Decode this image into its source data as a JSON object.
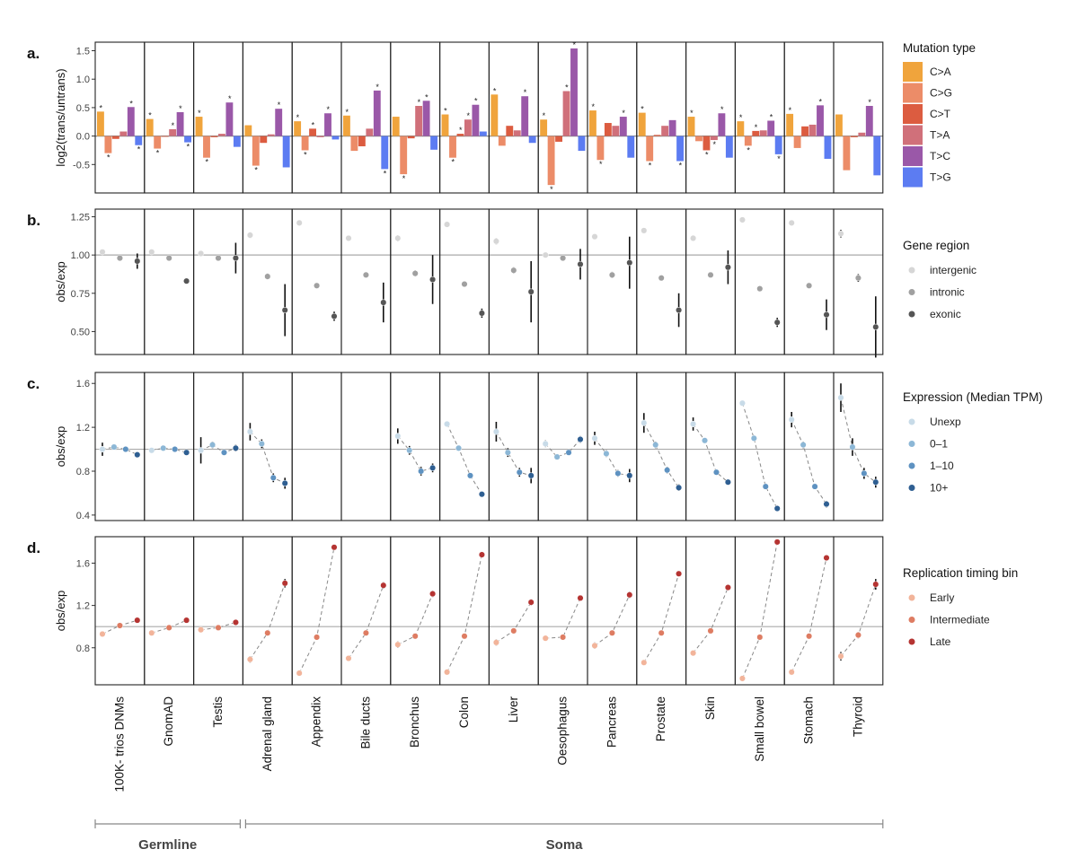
{
  "categories": [
    "100K- trios DNMs",
    "GnomAD",
    "Testis",
    "Adrenal gland",
    "Appendix",
    "Bile ducts",
    "Bronchus",
    "Colon",
    "Liver",
    "Oesophagus",
    "Pancreas",
    "Prostate",
    "Skin",
    "Small bowel",
    "Stomach",
    "Thyroid"
  ],
  "groups": [
    {
      "label": "Germline",
      "start": 0,
      "end": 2
    },
    {
      "label": "Soma",
      "start": 3,
      "end": 15
    }
  ],
  "chart_data": [
    {
      "panel_label": "a.",
      "type": "bar",
      "ylabel": "log2(trans/untrans)",
      "ylim": [
        -1.0,
        1.65
      ],
      "yticks": [
        -0.5,
        0.0,
        0.5,
        1.0,
        1.5
      ],
      "yticklabels": [
        "-0.5",
        "0.0",
        "0.5",
        "1.0",
        "1.5"
      ],
      "reference_line": 0,
      "legend_title": "Mutation type",
      "significance_marker": "*",
      "series": [
        {
          "name": "C>A",
          "color": "#f0a43c",
          "values": [
            0.43,
            0.3,
            0.34,
            0.19,
            0.26,
            0.36,
            0.34,
            0.38,
            0.73,
            0.29,
            0.45,
            0.41,
            0.34,
            0.26,
            0.39,
            0.38
          ],
          "sig": [
            true,
            true,
            true,
            false,
            true,
            true,
            false,
            true,
            true,
            true,
            true,
            true,
            true,
            true,
            true,
            false
          ]
        },
        {
          "name": "C>G",
          "color": "#ec8c68",
          "values": [
            -0.3,
            -0.22,
            -0.38,
            -0.52,
            -0.25,
            -0.26,
            -0.67,
            -0.38,
            -0.17,
            -0.86,
            -0.42,
            -0.44,
            -0.09,
            -0.17,
            -0.21,
            -0.6
          ],
          "sig": [
            true,
            true,
            true,
            true,
            true,
            false,
            true,
            true,
            false,
            true,
            true,
            true,
            false,
            true,
            false,
            false
          ]
        },
        {
          "name": "C>T",
          "color": "#dc5c40",
          "values": [
            -0.05,
            0.0,
            -0.02,
            -0.12,
            0.13,
            -0.18,
            -0.04,
            0.04,
            0.18,
            -0.1,
            0.23,
            0.02,
            -0.25,
            0.09,
            0.17,
            -0.02
          ],
          "sig": [
            false,
            false,
            false,
            false,
            true,
            false,
            false,
            true,
            false,
            false,
            false,
            false,
            true,
            true,
            false,
            false
          ]
        },
        {
          "name": "T>A",
          "color": "#d0707a",
          "values": [
            0.08,
            0.12,
            0.04,
            0.03,
            -0.02,
            0.13,
            0.53,
            0.29,
            0.1,
            0.79,
            0.18,
            0.18,
            -0.07,
            0.1,
            0.2,
            0.06
          ],
          "sig": [
            false,
            true,
            false,
            false,
            false,
            false,
            true,
            true,
            false,
            true,
            false,
            false,
            true,
            false,
            false,
            false
          ]
        },
        {
          "name": "T>C",
          "color": "#9a58a8",
          "values": [
            0.51,
            0.42,
            0.59,
            0.48,
            0.4,
            0.8,
            0.62,
            0.55,
            0.7,
            1.54,
            0.34,
            0.28,
            0.4,
            0.27,
            0.54,
            0.53
          ],
          "sig": [
            true,
            true,
            true,
            true,
            true,
            true,
            true,
            true,
            true,
            true,
            true,
            false,
            true,
            true,
            true,
            true
          ]
        },
        {
          "name": "T>G",
          "color": "#5c7cf2",
          "values": [
            -0.16,
            -0.11,
            -0.19,
            -0.55,
            -0.06,
            -0.58,
            -0.24,
            0.08,
            -0.12,
            -0.26,
            -0.38,
            -0.44,
            -0.38,
            -0.32,
            -0.4,
            -0.69
          ],
          "sig": [
            true,
            true,
            false,
            false,
            false,
            true,
            false,
            false,
            false,
            false,
            false,
            true,
            false,
            true,
            false,
            false
          ]
        }
      ]
    },
    {
      "panel_label": "b.",
      "type": "scatter",
      "ylabel": "obs/exp",
      "ylim": [
        0.35,
        1.3
      ],
      "yticks": [
        0.5,
        0.75,
        1.0,
        1.25
      ],
      "yticklabels": [
        "0.50",
        "0.75",
        "1.00",
        "1.25"
      ],
      "reference_line": 1.0,
      "legend_title": "Gene region",
      "connect_points": false,
      "series": [
        {
          "name": "intergenic",
          "color": "#d6d6d6",
          "values": [
            1.02,
            1.02,
            1.01,
            1.13,
            1.21,
            1.11,
            1.11,
            1.2,
            1.09,
            1.0,
            1.12,
            1.16,
            1.11,
            1.23,
            1.21,
            1.14
          ],
          "err": [
            0.01,
            0.01,
            0.01,
            0.02,
            0.01,
            0.015,
            0.02,
            0.01,
            0.02,
            0.01,
            0.015,
            0.015,
            0.015,
            0.01,
            0.015,
            0.025
          ]
        },
        {
          "name": "intronic",
          "color": "#a0a0a0",
          "values": [
            0.98,
            0.98,
            0.98,
            0.86,
            0.8,
            0.87,
            0.88,
            0.81,
            0.9,
            0.98,
            0.87,
            0.85,
            0.87,
            0.78,
            0.8,
            0.85
          ],
          "err": [
            0.01,
            0.01,
            0.01,
            0.02,
            0.01,
            0.015,
            0.02,
            0.01,
            0.02,
            0.015,
            0.02,
            0.015,
            0.015,
            0.01,
            0.015,
            0.025
          ]
        },
        {
          "name": "exonic",
          "color": "#555555",
          "values": [
            0.96,
            0.83,
            0.98,
            0.64,
            0.6,
            0.69,
            0.84,
            0.62,
            0.76,
            0.94,
            0.95,
            0.64,
            0.92,
            0.56,
            0.61,
            0.53
          ],
          "err": [
            0.05,
            0.01,
            0.1,
            0.17,
            0.03,
            0.13,
            0.16,
            0.03,
            0.2,
            0.1,
            0.17,
            0.11,
            0.11,
            0.03,
            0.1,
            0.2
          ]
        }
      ]
    },
    {
      "panel_label": "c.",
      "type": "line",
      "ylabel": "obs/exp",
      "ylim": [
        0.35,
        1.7
      ],
      "yticks": [
        0.4,
        0.8,
        1.2,
        1.6
      ],
      "yticklabels": [
        "0.4",
        "0.8",
        "1.2",
        "1.6"
      ],
      "reference_line": 1.0,
      "legend_title": "Expression (Median TPM)",
      "connect_points": true,
      "series": [
        {
          "name": "Unexp",
          "color": "#c8dbe8",
          "values": [
            1.0,
            0.99,
            0.99,
            1.16,
            null,
            null,
            1.12,
            1.23,
            1.16,
            1.05,
            1.1,
            1.24,
            1.23,
            1.42,
            1.27,
            1.47
          ],
          "err": [
            0.06,
            0.01,
            0.12,
            0.08,
            null,
            null,
            0.07,
            0.01,
            0.09,
            0.03,
            0.06,
            0.09,
            0.06,
            0.01,
            0.07,
            0.13
          ]
        },
        {
          "name": "0–1",
          "color": "#8cb7d6",
          "values": [
            1.02,
            1.01,
            1.04,
            1.05,
            null,
            null,
            0.99,
            1.01,
            0.97,
            0.93,
            0.96,
            1.04,
            1.08,
            1.1,
            1.04,
            1.02
          ],
          "err": [
            0.02,
            0.01,
            0.03,
            0.04,
            null,
            null,
            0.04,
            0.01,
            0.04,
            0.02,
            0.03,
            0.03,
            0.02,
            0.01,
            0.03,
            0.08
          ]
        },
        {
          "name": "1–10",
          "color": "#5e92c1",
          "values": [
            1.0,
            1.0,
            0.97,
            0.74,
            null,
            null,
            0.8,
            0.76,
            0.79,
            0.97,
            0.78,
            0.81,
            0.79,
            0.66,
            0.66,
            0.78
          ],
          "err": [
            0.01,
            0.01,
            0.02,
            0.04,
            null,
            null,
            0.04,
            0.01,
            0.04,
            0.02,
            0.03,
            0.03,
            0.02,
            0.01,
            0.02,
            0.05
          ]
        },
        {
          "name": "10+",
          "color": "#2f5f92",
          "values": [
            0.95,
            0.97,
            1.01,
            0.69,
            null,
            null,
            0.83,
            0.59,
            0.76,
            1.09,
            0.76,
            0.65,
            0.7,
            0.46,
            0.5,
            0.7
          ],
          "err": [
            0.02,
            0.01,
            0.03,
            0.05,
            null,
            null,
            0.04,
            0.01,
            0.07,
            0.03,
            0.06,
            0.03,
            0.02,
            0.01,
            0.03,
            0.05
          ]
        }
      ]
    },
    {
      "panel_label": "d.",
      "type": "line",
      "ylabel": "obs/exp",
      "ylim": [
        0.45,
        1.85
      ],
      "yticks": [
        0.8,
        1.2,
        1.6
      ],
      "yticklabels": [
        "0.8",
        "1.2",
        "1.6"
      ],
      "reference_line": 1.0,
      "legend_title": "Replication timing bin",
      "connect_points": true,
      "series": [
        {
          "name": "Early",
          "color": "#f2b49a",
          "values": [
            0.93,
            0.94,
            0.97,
            0.69,
            0.56,
            0.7,
            0.83,
            0.57,
            0.85,
            0.89,
            0.82,
            0.66,
            0.75,
            0.51,
            0.57,
            0.72
          ],
          "err": [
            0.01,
            0.01,
            0.02,
            0.03,
            0.01,
            0.02,
            0.03,
            0.01,
            0.03,
            0.01,
            0.03,
            0.02,
            0.02,
            0.01,
            0.02,
            0.04
          ]
        },
        {
          "name": "Intermediate",
          "color": "#de7c62",
          "values": [
            1.01,
            0.99,
            0.99,
            0.94,
            0.9,
            0.94,
            0.91,
            0.91,
            0.96,
            0.9,
            0.94,
            0.94,
            0.96,
            0.9,
            0.91,
            0.92
          ],
          "err": [
            0.01,
            0.01,
            0.02,
            0.02,
            0.01,
            0.02,
            0.02,
            0.01,
            0.02,
            0.01,
            0.02,
            0.01,
            0.01,
            0.01,
            0.02,
            0.03
          ]
        },
        {
          "name": "Late",
          "color": "#b53432",
          "values": [
            1.06,
            1.06,
            1.04,
            1.41,
            1.75,
            1.39,
            1.31,
            1.68,
            1.23,
            1.27,
            1.3,
            1.5,
            1.37,
            1.8,
            1.65,
            1.4
          ],
          "err": [
            0.01,
            0.01,
            0.02,
            0.04,
            0.01,
            0.03,
            0.03,
            0.01,
            0.03,
            0.01,
            0.03,
            0.02,
            0.02,
            0.01,
            0.02,
            0.05
          ]
        }
      ]
    }
  ]
}
